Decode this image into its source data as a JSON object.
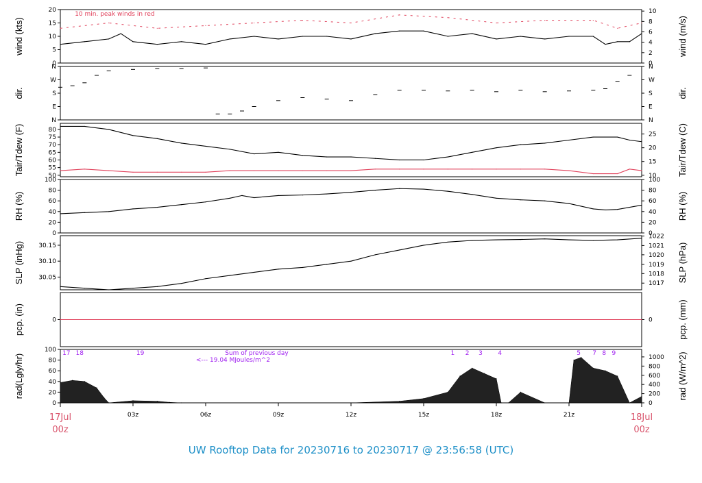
{
  "footer": {
    "title": "UW Rooftop Data for 20230716  to  20230717 @ 23:56:58  (UTC)"
  },
  "colors": {
    "main": "#000000",
    "red": "#e0405a",
    "purple": "#a020f0",
    "title_blue": "#1e90c8",
    "date_pink": "#d9536b"
  },
  "x_axis": {
    "hours_start": 0,
    "hours_end": 24,
    "ticks": [
      {
        "h": 3,
        "label": "03z"
      },
      {
        "h": 6,
        "label": "06z"
      },
      {
        "h": 9,
        "label": "09z"
      },
      {
        "h": 12,
        "label": "12z"
      },
      {
        "h": 15,
        "label": "15z"
      },
      {
        "h": 18,
        "label": "18z"
      },
      {
        "h": 21,
        "label": "21z"
      }
    ],
    "start_label_top": "17Jul",
    "start_label_bottom": "00z",
    "end_label_top": "18Jul",
    "end_label_bottom": "00z"
  },
  "chart_data": [
    {
      "id": "wind",
      "type": "line",
      "ylabel_left": "wind (kts)",
      "ylabel_right": "wind (m/s)",
      "ylim": [
        0,
        20
      ],
      "left_ticks": [
        0,
        5,
        10,
        15,
        20
      ],
      "right_ticks": [
        "0",
        "2",
        "4",
        "6",
        "8",
        "10"
      ],
      "right_ticks_pos": [
        0,
        3.89,
        7.78,
        11.66,
        15.55,
        19.44
      ],
      "annotation": "10 min. peak winds in red",
      "series": [
        {
          "name": "wind speed",
          "x": [
            0,
            1,
            2,
            2.5,
            3,
            4,
            5,
            6,
            7,
            8,
            9,
            10,
            11,
            12,
            13,
            14,
            15,
            16,
            17,
            18,
            19,
            20,
            21,
            22,
            22.5,
            23,
            23.5,
            24
          ],
          "values": [
            7,
            8,
            9,
            11,
            8,
            7,
            8,
            7,
            9,
            10,
            9,
            10,
            10,
            9,
            11,
            12,
            12,
            10,
            11,
            9,
            10,
            9,
            10,
            10,
            7,
            8,
            8,
            11
          ]
        },
        {
          "name": "10 min. peak winds",
          "x": [
            0,
            2,
            4,
            6,
            8,
            10,
            12,
            14,
            16,
            18,
            20,
            22,
            23,
            24
          ],
          "values": [
            13,
            15,
            13,
            14,
            15,
            16,
            15,
            18,
            17,
            15,
            16,
            16,
            13,
            15
          ]
        }
      ]
    },
    {
      "id": "dir",
      "type": "scatter",
      "ylabel_left": "dir.",
      "ylabel_right": "dir.",
      "ylim": [
        0,
        360
      ],
      "left_ticks_labels": [
        "N",
        "E",
        "S",
        "W",
        "N"
      ],
      "tick_values": [
        0,
        90,
        180,
        270,
        360
      ],
      "series": [
        {
          "name": "direction",
          "x": [
            0,
            0.5,
            1,
            1.5,
            2,
            3,
            4,
            5,
            6,
            6.5,
            7,
            7.5,
            8,
            9,
            10,
            11,
            12,
            13,
            14,
            15,
            16,
            17,
            18,
            19,
            20,
            21,
            22,
            22.5,
            23,
            23.5,
            24
          ],
          "values": [
            220,
            230,
            250,
            300,
            330,
            340,
            345,
            345,
            350,
            40,
            40,
            60,
            90,
            130,
            150,
            140,
            130,
            170,
            200,
            200,
            195,
            200,
            190,
            200,
            190,
            195,
            200,
            210,
            260,
            300,
            0
          ]
        }
      ]
    },
    {
      "id": "temp",
      "type": "line",
      "ylabel_left": "Tair/Tdew (F)",
      "ylabel_right": "Tair/Tdew (C)",
      "ylim": [
        49,
        84
      ],
      "left_ticks": [
        50,
        55,
        60,
        65,
        70,
        75,
        80
      ],
      "right_ticks": [
        "10",
        "15",
        "20",
        "25"
      ],
      "right_ticks_pos": [
        50,
        59,
        68,
        77
      ],
      "series": [
        {
          "name": "Tair",
          "x": [
            0,
            1,
            2,
            3,
            4,
            5,
            6,
            7,
            8,
            9,
            10,
            11,
            12,
            13,
            14,
            15,
            16,
            17,
            18,
            19,
            20,
            21,
            22,
            23,
            23.5,
            24
          ],
          "values": [
            82,
            82,
            80,
            76,
            74,
            71,
            69,
            67,
            64,
            65,
            63,
            62,
            62,
            61,
            60,
            60,
            62,
            65,
            68,
            70,
            71,
            73,
            75,
            75,
            73,
            72
          ]
        },
        {
          "name": "Tdew",
          "x": [
            0,
            1,
            2,
            3,
            4,
            5,
            6,
            7,
            8,
            9,
            10,
            11,
            12,
            13,
            14,
            15,
            16,
            17,
            18,
            19,
            20,
            21,
            22,
            23,
            23.5,
            24
          ],
          "values": [
            53,
            54,
            53,
            52,
            52,
            52,
            52,
            53,
            53,
            53,
            53,
            53,
            53,
            54,
            54,
            54,
            54,
            54,
            54,
            54,
            54,
            53,
            51,
            51,
            54,
            53
          ]
        }
      ]
    },
    {
      "id": "rh",
      "type": "line",
      "ylabel_left": "RH (%)",
      "ylabel_right": "RH (%)",
      "ylim": [
        0,
        100
      ],
      "left_ticks": [
        0,
        20,
        40,
        60,
        80,
        100
      ],
      "right_ticks": [
        "0",
        "20",
        "40",
        "60",
        "80",
        "100"
      ],
      "right_ticks_pos": [
        0,
        20,
        40,
        60,
        80,
        100
      ],
      "series": [
        {
          "name": "RH",
          "x": [
            0,
            1,
            2,
            3,
            4,
            5,
            6,
            7,
            7.5,
            8,
            9,
            10,
            11,
            12,
            13,
            14,
            15,
            16,
            17,
            18,
            19,
            20,
            21,
            22,
            22.5,
            23,
            24
          ],
          "values": [
            36,
            38,
            40,
            45,
            48,
            53,
            58,
            65,
            70,
            66,
            70,
            71,
            73,
            76,
            80,
            83,
            82,
            78,
            72,
            65,
            62,
            60,
            55,
            45,
            43,
            44,
            52
          ]
        }
      ]
    },
    {
      "id": "slp",
      "type": "line",
      "ylabel_left": "SLP (inHg)",
      "ylabel_right": "SLP (hPa)",
      "ylim": [
        30.01,
        30.18
      ],
      "left_ticks": [
        30.05,
        30.1,
        30.15
      ],
      "right_ticks": [
        "1017",
        "1018",
        "1019",
        "1020",
        "1021",
        "1022"
      ],
      "right_ticks_pos": [
        30.031,
        30.061,
        30.09,
        30.12,
        30.149,
        30.179
      ],
      "series": [
        {
          "name": "SLP",
          "x": [
            0,
            1,
            2,
            3,
            4,
            5,
            6,
            7,
            8,
            9,
            10,
            11,
            12,
            13,
            14,
            15,
            16,
            17,
            18,
            19,
            20,
            21,
            22,
            23,
            24
          ],
          "values": [
            30.02,
            30.015,
            30.01,
            30.015,
            30.02,
            30.03,
            30.045,
            30.055,
            30.065,
            30.075,
            30.08,
            30.09,
            30.1,
            30.12,
            30.135,
            30.15,
            30.16,
            30.165,
            30.167,
            30.168,
            30.17,
            30.167,
            30.165,
            30.167,
            30.172
          ]
        }
      ]
    },
    {
      "id": "pcp",
      "type": "line",
      "ylabel_left": "pcp. (in)",
      "ylabel_right": "pcp. (mm)",
      "ylim": [
        -1,
        1
      ],
      "left_ticks": [
        0
      ],
      "right_ticks": [
        "0"
      ],
      "right_ticks_pos": [
        0
      ],
      "series": [
        {
          "name": "precip",
          "x": [
            0,
            24
          ],
          "values": [
            0,
            0
          ]
        }
      ]
    },
    {
      "id": "rad",
      "type": "area",
      "ylabel_left": "rad(Lgly/hr)",
      "ylabel_right": "rad (W/m^2)",
      "ylim": [
        0,
        100
      ],
      "left_ticks": [
        0,
        20,
        40,
        60,
        80,
        100
      ],
      "right_ticks": [
        "0",
        "200",
        "400",
        "600",
        "800",
        "1000"
      ],
      "right_ticks_pos": [
        0,
        17.2,
        34.4,
        51.6,
        68.8,
        86.0
      ],
      "sum_label_1": "Sum of previous day",
      "sum_label_2": "<--- 19.04 MJoules/m^2",
      "hour_marks": [
        {
          "h": 0.25,
          "label": "17"
        },
        {
          "h": 0.8,
          "label": "18"
        },
        {
          "h": 3.3,
          "label": "19"
        },
        {
          "h": 16.2,
          "label": "1"
        },
        {
          "h": 16.8,
          "label": "2"
        },
        {
          "h": 17.35,
          "label": "3"
        },
        {
          "h": 18.15,
          "label": "4"
        },
        {
          "h": 21.4,
          "label": "5"
        },
        {
          "h": 22.05,
          "label": "7"
        },
        {
          "h": 22.45,
          "label": "8"
        },
        {
          "h": 22.85,
          "label": "9"
        }
      ],
      "series": [
        {
          "name": "radiation",
          "x": [
            0,
            0.5,
            1,
            1.5,
            1.8,
            2,
            3,
            4,
            4.5,
            5,
            12,
            14,
            15,
            16,
            16.5,
            17,
            17.5,
            18,
            18.2,
            18.5,
            19,
            20,
            21,
            21.2,
            21.5,
            22,
            22.5,
            23,
            23.5,
            24
          ],
          "values": [
            38,
            42,
            40,
            28,
            10,
            0,
            4,
            3,
            1,
            0,
            0,
            3,
            8,
            20,
            50,
            65,
            55,
            45,
            0,
            0,
            20,
            0,
            0,
            80,
            85,
            65,
            60,
            50,
            0,
            12
          ]
        }
      ]
    }
  ]
}
